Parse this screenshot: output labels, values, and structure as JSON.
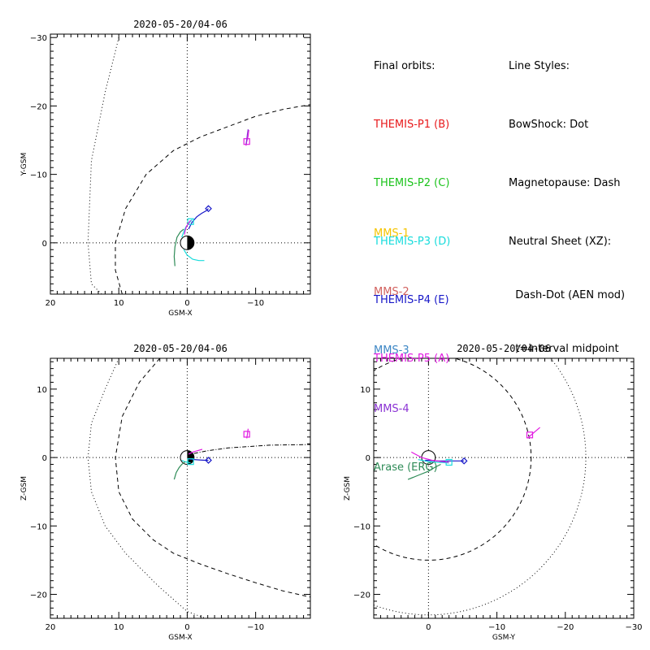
{
  "legend": {
    "final_orbits_title": "Final orbits:",
    "themis": [
      {
        "label": "THEMIS-P1 (B)",
        "color": "#e8191b"
      },
      {
        "label": "THEMIS-P2 (C)",
        "color": "#1bc31b"
      },
      {
        "label": "THEMIS-P3 (D)",
        "color": "#18dcdc"
      },
      {
        "label": "THEMIS-P4 (E)",
        "color": "#1717c8"
      },
      {
        "label": "THEMIS-P5 (A)",
        "color": "#e21be2"
      }
    ],
    "others": [
      {
        "label": "MMS-1",
        "color": "#f5c400"
      },
      {
        "label": "MMS-2",
        "color": "#d2625f"
      },
      {
        "label": "MMS-3",
        "color": "#3d87c5"
      },
      {
        "label": "MMS-4",
        "color": "#8b33d4"
      },
      {
        "label": "Arase (ERG)",
        "color": "#2e8b57"
      }
    ],
    "line_styles_title": "Line Styles:",
    "line_styles": [
      "BowShock: Dot",
      "Magnetopause: Dash",
      "Neutral Sheet (XZ):",
      "  Dash-Dot (AEN mod)",
      "  t=interval midpoint"
    ]
  },
  "chart_data": [
    {
      "type": "scatter",
      "title": "2020-05-20/04-06",
      "xlabel": "GSM-X",
      "ylabel": "Y-GSM",
      "xlim": [
        20,
        -18
      ],
      "ylim": [
        7.5,
        -30.5
      ],
      "xticks": [
        20,
        10,
        0,
        -10
      ],
      "yticks": [
        -30,
        -20,
        -10,
        0
      ],
      "grid": "dotted zero lines",
      "bow_shock": {
        "x": [
          10,
          12,
          14,
          14.5,
          14,
          12,
          9,
          4,
          0,
          -4,
          -9.5
        ],
        "y": [
          -30,
          -22,
          -12,
          0,
          6,
          8,
          8,
          8,
          8,
          8,
          8
        ]
      },
      "magnetopause": {
        "x": [
          9.5,
          10.5,
          10.5,
          9,
          6,
          2,
          -2,
          -6,
          -10,
          -14,
          -18
        ],
        "y": [
          7.5,
          4,
          0,
          -5,
          -10,
          -13.5,
          -15.5,
          -17,
          -18.5,
          -19.5,
          -20.2
        ]
      },
      "earth": {
        "x": 0,
        "y": 0,
        "r": 1
      },
      "orbits": [
        {
          "color": "#1717c8",
          "x": [
            -0.2,
            -0.7,
            -1.4,
            -2.1,
            -2.8,
            -3.1
          ],
          "y": [
            -2.0,
            -3.0,
            -3.8,
            -4.3,
            -4.7,
            -5.0
          ],
          "marker": "diamond",
          "mx": -3.1,
          "my": -5.0
        },
        {
          "color": "#18dcdc",
          "x": [
            0.8,
            0.5,
            0.2,
            -0.3,
            -0.7
          ],
          "y": [
            -0.8,
            -1.6,
            -2.3,
            -2.9,
            -3.4
          ],
          "marker": "square",
          "mx": -0.5,
          "my": -3.1
        },
        {
          "color": "#18dcdc",
          "x": [
            0.5,
            0.0,
            -0.8,
            -1.7,
            -2.5
          ],
          "y": [
            1.0,
            1.8,
            2.4,
            2.6,
            2.6
          ],
          "marker": "none"
        },
        {
          "color": "#e21be2",
          "x": [
            -8.6,
            -8.7,
            -8.9,
            -9.0
          ],
          "y": [
            -14.2,
            -14.8,
            -15.6,
            -16.5
          ],
          "marker": "square",
          "mx": -8.7,
          "my": -14.8
        },
        {
          "color": "#8b33d4",
          "x": [
            -8.6,
            -8.7,
            -8.8,
            -8.9
          ],
          "y": [
            -14.4,
            -15.1,
            -15.9,
            -16.6
          ],
          "marker": "none"
        },
        {
          "color": "#2e8b57",
          "x": [
            1.8,
            1.9,
            1.8,
            1.5,
            1.0,
            0.5
          ],
          "y": [
            3.4,
            2.0,
            0.6,
            -0.8,
            -1.6,
            -2.0
          ],
          "marker": "none"
        },
        {
          "color": "#e21be2",
          "x": [
            0.4,
            0.3,
            0.1,
            -0.2,
            -0.5
          ],
          "y": [
            -1.2,
            -1.8,
            -2.4,
            -2.9,
            -3.3
          ],
          "marker": "none"
        }
      ]
    },
    {
      "type": "scatter",
      "title": "2020-05-20/04-06",
      "xlabel": "GSM-X",
      "ylabel": "Z-GSM",
      "xlim": [
        20,
        -18
      ],
      "ylim": [
        -23.5,
        14.5
      ],
      "xticks": [
        20,
        10,
        0,
        -10
      ],
      "yticks": [
        -20,
        -10,
        0,
        10
      ],
      "grid": "dotted zero lines",
      "bow_shock": {
        "x": [
          10,
          12,
          14,
          14.5,
          14,
          12,
          9,
          4,
          0,
          -4
        ],
        "y": [
          14.5,
          10,
          5,
          0,
          -5,
          -10,
          -14,
          -19,
          -22.5,
          -24
        ]
      },
      "magnetopause": {
        "x": [
          4,
          7,
          9.5,
          10.5,
          10,
          8,
          5,
          2,
          -2,
          -6,
          -10,
          -14,
          -18
        ],
        "y": [
          14.5,
          11,
          6,
          0,
          -5,
          -9,
          -12,
          -14,
          -15.6,
          -17,
          -18.3,
          -19.5,
          -20.4
        ]
      },
      "neutral_sheet": {
        "x": [
          -1,
          -3,
          -6,
          -9,
          -12,
          -15,
          -18
        ],
        "y": [
          0.6,
          1.0,
          1.4,
          1.6,
          1.8,
          1.85,
          1.9
        ]
      },
      "earth": {
        "x": 0,
        "y": 0,
        "r": 1
      },
      "orbits": [
        {
          "color": "#1717c8",
          "x": [
            -0.2,
            -1.0,
            -1.8,
            -2.6,
            -3.1
          ],
          "y": [
            -0.2,
            -0.3,
            -0.35,
            -0.4,
            -0.4
          ],
          "marker": "diamond",
          "mx": -3.1,
          "my": -0.4
        },
        {
          "color": "#18dcdc",
          "x": [
            0.8,
            0.4,
            -0.1,
            -0.5
          ],
          "y": [
            -0.4,
            -0.6,
            -0.7,
            -0.8
          ],
          "marker": "square",
          "mx": -0.5,
          "my": -0.6
        },
        {
          "color": "#e21be2",
          "x": [
            -0.2,
            -0.8,
            -1.5,
            -2.2
          ],
          "y": [
            0.5,
            0.8,
            1.0,
            1.2
          ],
          "marker": "none"
        },
        {
          "color": "#e21be2",
          "x": [
            -8.7,
            -8.8,
            -8.9
          ],
          "y": [
            2.8,
            3.4,
            4.2
          ],
          "marker": "square",
          "mx": -8.7,
          "my": 3.4
        },
        {
          "color": "#2e8b57",
          "x": [
            1.9,
            1.6,
            1.2,
            0.8,
            0.3
          ],
          "y": [
            -3.2,
            -2.2,
            -1.5,
            -1.0,
            -0.6
          ],
          "marker": "none"
        }
      ]
    },
    {
      "type": "scatter",
      "title": "2020-05-20/04-06",
      "xlabel": "GSM-Y",
      "ylabel": "Z-GSM",
      "xlim": [
        8,
        -30
      ],
      "ylim": [
        -23.5,
        14.5
      ],
      "xticks": [
        0,
        -10,
        -20,
        -30
      ],
      "yticks": [
        -20,
        -10,
        0,
        10
      ],
      "grid": "dotted zero lines",
      "bow_shock_circle": {
        "cx": 0,
        "cy": 0,
        "r": 23
      },
      "magnetopause_circle": {
        "cx": 0,
        "cy": 0,
        "r": 15
      },
      "earth": {
        "x": 0,
        "y": 0,
        "r": 1
      },
      "orbits": [
        {
          "color": "#1717c8",
          "x": [
            0.5,
            -1.5,
            -3,
            -4.5,
            -5.2
          ],
          "y": [
            -0.4,
            -0.5,
            -0.5,
            -0.5,
            -0.5
          ],
          "marker": "diamond",
          "mx": -5.2,
          "my": -0.5
        },
        {
          "color": "#18dcdc",
          "x": [
            1.5,
            0.0,
            -1.5,
            -3.0
          ],
          "y": [
            -0.3,
            -0.6,
            -0.7,
            -0.8
          ],
          "marker": "square",
          "mx": -3.0,
          "my": -0.7
        },
        {
          "color": "#e21be2",
          "x": [
            2.5,
            1.0,
            -0.5,
            -2.0,
            -3.0
          ],
          "y": [
            0.8,
            0.0,
            -0.4,
            -0.6,
            -0.7
          ],
          "marker": "none"
        },
        {
          "color": "#e21be2",
          "x": [
            -14.5,
            -15.0,
            -15.6,
            -16.3
          ],
          "y": [
            2.8,
            3.3,
            3.8,
            4.4
          ],
          "marker": "square",
          "mx": -14.8,
          "my": 3.3
        },
        {
          "color": "#2e8b57",
          "x": [
            3.0,
            1.5,
            0.0,
            -1.0,
            -1.8
          ],
          "y": [
            -3.2,
            -2.6,
            -2.0,
            -1.4,
            -1.0
          ],
          "marker": "none"
        }
      ]
    }
  ]
}
